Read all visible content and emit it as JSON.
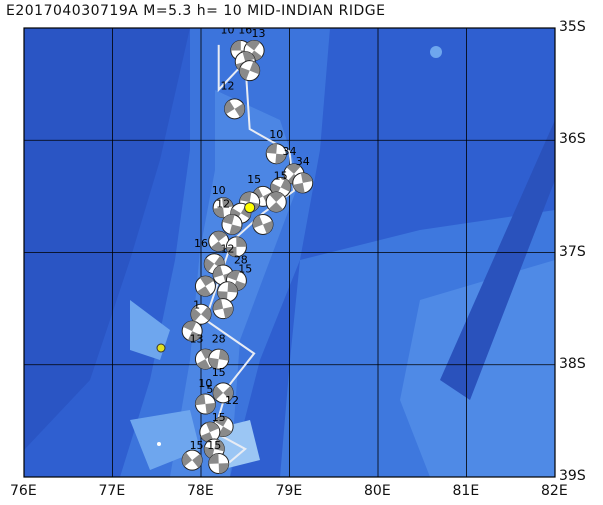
{
  "title": "E201704030719A  M=5.3  h= 10  MID-INDIAN RIDGE",
  "map": {
    "lon_range": [
      76,
      82
    ],
    "lat_range": [
      35,
      39
    ],
    "lat_labels": [
      "35S",
      "36S",
      "37S",
      "38S",
      "39S"
    ],
    "lon_labels": [
      "76E",
      "77E",
      "78E",
      "79E",
      "80E",
      "81E",
      "82E"
    ],
    "ocean_colors": [
      "#2f5fd0",
      "#3c74dc",
      "#4c86e4",
      "#6ea6ee",
      "#9bc6f4"
    ],
    "grid_color": "#000000",
    "ridge_color": "#e8ecf4",
    "event_marker_color": "#ffff00",
    "event": {
      "lon": 78.55,
      "lat": 36.6
    },
    "ridge_path": [
      [
        78.2,
        35.15
      ],
      [
        78.2,
        35.55
      ],
      [
        78.5,
        35.3
      ],
      [
        78.55,
        35.9
      ],
      [
        79.0,
        36.1
      ],
      [
        79.05,
        36.45
      ],
      [
        78.7,
        36.65
      ],
      [
        78.35,
        36.9
      ],
      [
        78.05,
        37.6
      ],
      [
        78.6,
        37.9
      ],
      [
        78.3,
        38.2
      ],
      [
        78.15,
        38.6
      ],
      [
        78.5,
        38.75
      ],
      [
        78.2,
        38.95
      ]
    ],
    "depth_labels": [
      {
        "text": "10",
        "lon": 78.3,
        "lat": 35.05
      },
      {
        "text": "16",
        "lon": 78.5,
        "lat": 35.05
      },
      {
        "text": "13",
        "lon": 78.65,
        "lat": 35.08
      },
      {
        "text": "12",
        "lon": 78.3,
        "lat": 35.55
      },
      {
        "text": "10",
        "lon": 78.85,
        "lat": 35.98
      },
      {
        "text": "34",
        "lon": 79.0,
        "lat": 36.13
      },
      {
        "text": "34",
        "lon": 79.15,
        "lat": 36.22
      },
      {
        "text": "15",
        "lon": 78.6,
        "lat": 36.38
      },
      {
        "text": "10",
        "lon": 78.2,
        "lat": 36.48
      },
      {
        "text": "15",
        "lon": 78.9,
        "lat": 36.35
      },
      {
        "text": "12",
        "lon": 78.25,
        "lat": 36.6
      },
      {
        "text": "16",
        "lon": 78.0,
        "lat": 36.95
      },
      {
        "text": "12",
        "lon": 78.3,
        "lat": 37.0
      },
      {
        "text": "28",
        "lon": 78.45,
        "lat": 37.1
      },
      {
        "text": "15",
        "lon": 78.5,
        "lat": 37.18
      },
      {
        "text": "1",
        "lon": 77.95,
        "lat": 37.5
      },
      {
        "text": "13",
        "lon": 77.95,
        "lat": 37.8
      },
      {
        "text": "28",
        "lon": 78.2,
        "lat": 37.8
      },
      {
        "text": "15",
        "lon": 78.2,
        "lat": 38.1
      },
      {
        "text": "10",
        "lon": 78.05,
        "lat": 38.2
      },
      {
        "text": "5",
        "lon": 78.1,
        "lat": 38.25
      },
      {
        "text": "12",
        "lon": 78.35,
        "lat": 38.35
      },
      {
        "text": "15",
        "lon": 78.2,
        "lat": 38.5
      },
      {
        "text": "15",
        "lon": 77.95,
        "lat": 38.75
      },
      {
        "text": "15",
        "lon": 78.15,
        "lat": 38.75
      }
    ],
    "mechanisms": [
      {
        "lon": 78.45,
        "lat": 35.2
      },
      {
        "lon": 78.6,
        "lat": 35.2
      },
      {
        "lon": 78.5,
        "lat": 35.3
      },
      {
        "lon": 78.55,
        "lat": 35.38
      },
      {
        "lon": 78.38,
        "lat": 35.72
      },
      {
        "lon": 78.85,
        "lat": 36.12
      },
      {
        "lon": 79.05,
        "lat": 36.3
      },
      {
        "lon": 79.15,
        "lat": 36.38
      },
      {
        "lon": 78.9,
        "lat": 36.42
      },
      {
        "lon": 78.7,
        "lat": 36.5
      },
      {
        "lon": 78.55,
        "lat": 36.55
      },
      {
        "lon": 78.85,
        "lat": 36.55
      },
      {
        "lon": 78.25,
        "lat": 36.6
      },
      {
        "lon": 78.45,
        "lat": 36.65
      },
      {
        "lon": 78.7,
        "lat": 36.75
      },
      {
        "lon": 78.35,
        "lat": 36.75
      },
      {
        "lon": 78.2,
        "lat": 36.9
      },
      {
        "lon": 78.4,
        "lat": 36.95
      },
      {
        "lon": 78.15,
        "lat": 37.1
      },
      {
        "lon": 78.25,
        "lat": 37.2
      },
      {
        "lon": 78.4,
        "lat": 37.25
      },
      {
        "lon": 78.05,
        "lat": 37.3
      },
      {
        "lon": 78.3,
        "lat": 37.35
      },
      {
        "lon": 78.0,
        "lat": 37.55
      },
      {
        "lon": 78.25,
        "lat": 37.5
      },
      {
        "lon": 77.9,
        "lat": 37.7
      },
      {
        "lon": 78.05,
        "lat": 37.95
      },
      {
        "lon": 78.2,
        "lat": 37.95
      },
      {
        "lon": 78.25,
        "lat": 38.25
      },
      {
        "lon": 78.05,
        "lat": 38.35
      },
      {
        "lon": 78.25,
        "lat": 38.55
      },
      {
        "lon": 78.1,
        "lat": 38.6
      },
      {
        "lon": 78.15,
        "lat": 38.75
      },
      {
        "lon": 77.9,
        "lat": 38.85
      },
      {
        "lon": 78.2,
        "lat": 38.88
      }
    ]
  }
}
